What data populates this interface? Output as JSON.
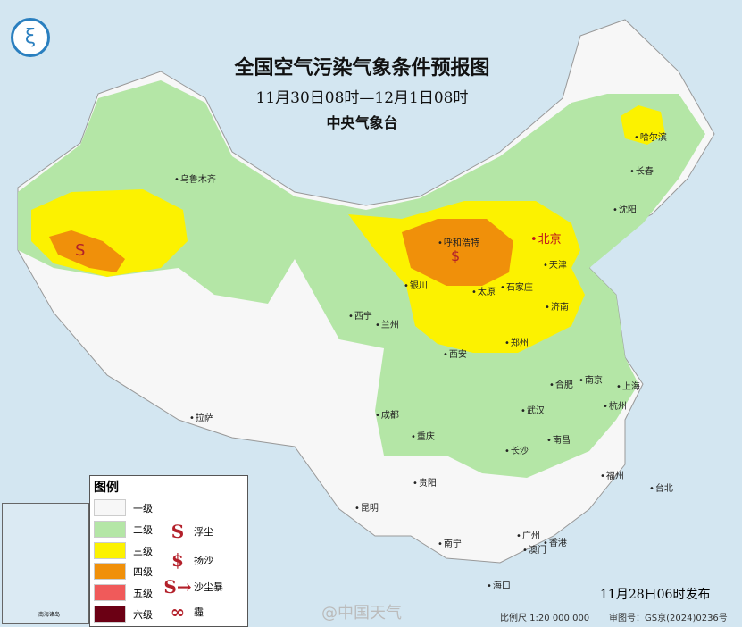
{
  "header": {
    "title": "全国空气污染气象条件预报图",
    "period": "11月30日08时—12月1日08时",
    "issuer": "中央气象台"
  },
  "colors": {
    "sea": "#d3e6f1",
    "level1": "#f7f7f7",
    "level2": "#b4e6a6",
    "level3": "#fcf200",
    "level4": "#f0900a",
    "level5": "#f05a5a",
    "level6": "#6b0014",
    "symbol": "#b3202a"
  },
  "legend": {
    "title": "图例",
    "levels": [
      {
        "label": "一级",
        "color": "#f7f7f7"
      },
      {
        "label": "二级",
        "color": "#b4e6a6"
      },
      {
        "label": "三级",
        "color": "#fcf200"
      },
      {
        "label": "四级",
        "color": "#f0900a"
      },
      {
        "label": "五级",
        "color": "#f05a5a"
      },
      {
        "label": "六级",
        "color": "#6b0014"
      }
    ],
    "symbols": [
      {
        "glyph": "S",
        "label": "浮尘"
      },
      {
        "glyph": "$",
        "label": "扬沙"
      },
      {
        "glyph": "S→",
        "label": "沙尘暴"
      },
      {
        "glyph": "∞",
        "label": "霾"
      }
    ]
  },
  "cities": [
    "乌鲁木齐",
    "哈尔滨",
    "长春",
    "沈阳",
    "北京",
    "天津",
    "呼和浩特",
    "石家庄",
    "太原",
    "银川",
    "济南",
    "西宁",
    "兰州",
    "郑州",
    "西安",
    "合肥",
    "南京",
    "上海",
    "武汉",
    "杭州",
    "成都",
    "重庆",
    "拉萨",
    "长沙",
    "南昌",
    "贵阳",
    "福州",
    "台北",
    "昆明",
    "南宁",
    "广州",
    "澳门",
    "香港",
    "海口"
  ],
  "map_symbols": [
    "S",
    "$"
  ],
  "inset": {
    "label": "南海诸岛"
  },
  "footer": {
    "release": "11月28日06时发布",
    "scale": "比例尺 1:20 000 000",
    "review_no": "审图号：GS京(2024)0236号",
    "watermark": "@中国天气"
  }
}
